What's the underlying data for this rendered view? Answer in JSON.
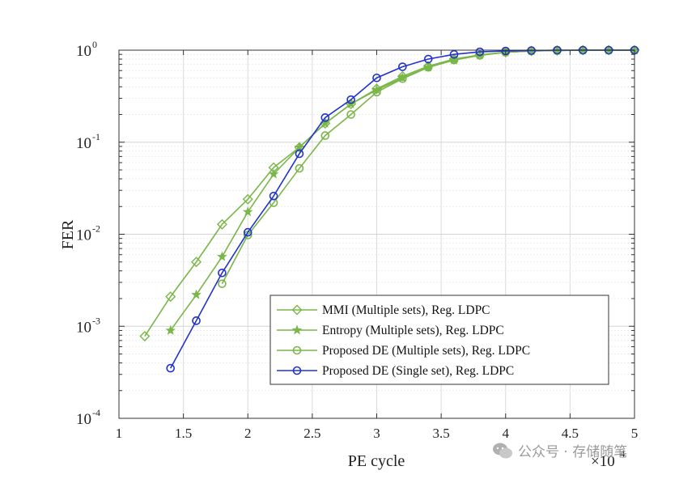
{
  "chart_data": {
    "type": "line",
    "title": "",
    "xlabel": "PE cycle",
    "ylabel": "FER",
    "x_multiplier": "×10",
    "x_multiplier_exp": "4",
    "xlim": [
      1,
      5
    ],
    "ylim": [
      0.0001,
      1
    ],
    "yscale": "log",
    "grid": true,
    "legend_position": "lower-right",
    "x_ticks": [
      {
        "value": 1,
        "label": "1"
      },
      {
        "value": 1.5,
        "label": "1.5"
      },
      {
        "value": 2,
        "label": "2"
      },
      {
        "value": 2.5,
        "label": "2.5"
      },
      {
        "value": 3,
        "label": "3"
      },
      {
        "value": 3.5,
        "label": "3.5"
      },
      {
        "value": 4,
        "label": "4"
      },
      {
        "value": 4.5,
        "label": "4.5"
      },
      {
        "value": 5,
        "label": "5"
      }
    ],
    "y_ticks": [
      {
        "value": 0.0001,
        "base": "10",
        "exp": "-4"
      },
      {
        "value": 0.001,
        "base": "10",
        "exp": "-3"
      },
      {
        "value": 0.01,
        "base": "10",
        "exp": "-2"
      },
      {
        "value": 0.1,
        "base": "10",
        "exp": "-1"
      },
      {
        "value": 1,
        "base": "10",
        "exp": "0"
      }
    ],
    "series": [
      {
        "name": "MMI (Multiple sets), Reg. LDPC",
        "color": "#7ab648",
        "marker": "diamond",
        "x": [
          1.2,
          1.4,
          1.6,
          1.8,
          2.0,
          2.2,
          2.4,
          2.6,
          2.8,
          3.0,
          3.2,
          3.4,
          3.6,
          3.8,
          4.0,
          4.2,
          4.4,
          4.6,
          4.8,
          5.0
        ],
        "y": [
          0.00078,
          0.0021,
          0.005,
          0.0128,
          0.024,
          0.053,
          0.088,
          0.16,
          0.26,
          0.38,
          0.52,
          0.67,
          0.8,
          0.89,
          0.95,
          0.98,
          0.99,
          1.0,
          1.0,
          1.0
        ]
      },
      {
        "name": "Entropy (Multiple sets), Reg. LDPC",
        "color": "#7ab648",
        "marker": "star",
        "x": [
          1.4,
          1.6,
          1.8,
          2.0,
          2.2,
          2.4,
          2.6,
          2.8,
          3.0,
          3.2,
          3.4,
          3.6,
          3.8,
          4.0,
          4.2,
          4.4,
          4.6,
          4.8,
          5.0
        ],
        "y": [
          0.0009,
          0.0022,
          0.0057,
          0.0175,
          0.045,
          0.088,
          0.16,
          0.26,
          0.37,
          0.5,
          0.65,
          0.78,
          0.88,
          0.95,
          0.98,
          0.99,
          1.0,
          1.0,
          1.0
        ]
      },
      {
        "name": "Proposed DE (Multiple sets), Reg. LDPC",
        "color": "#7ab648",
        "marker": "circle",
        "x": [
          1.8,
          2.0,
          2.2,
          2.4,
          2.6,
          2.8,
          3.0,
          3.2,
          3.4,
          3.6,
          3.8,
          4.0,
          4.2,
          4.4,
          4.6,
          4.8,
          5.0
        ],
        "y": [
          0.0029,
          0.0098,
          0.022,
          0.052,
          0.118,
          0.2,
          0.35,
          0.49,
          0.65,
          0.78,
          0.88,
          0.95,
          0.98,
          0.99,
          1.0,
          1.0,
          1.0
        ]
      },
      {
        "name": "Proposed DE (Single set), Reg. LDPC",
        "color": "#2233cc",
        "marker": "circle",
        "x": [
          1.4,
          1.6,
          1.8,
          2.0,
          2.2,
          2.4,
          2.6,
          2.8,
          3.0,
          3.2,
          3.4,
          3.6,
          3.8,
          4.0,
          4.2,
          4.4,
          4.6,
          4.8,
          5.0
        ],
        "y": [
          0.00035,
          0.00115,
          0.0038,
          0.0105,
          0.026,
          0.075,
          0.185,
          0.29,
          0.5,
          0.66,
          0.8,
          0.9,
          0.96,
          0.98,
          0.99,
          1.0,
          1.0,
          1.0,
          1.0
        ]
      }
    ]
  },
  "watermark": {
    "icon": "wechat-icon",
    "text": "公众号 · 存储随笔"
  }
}
